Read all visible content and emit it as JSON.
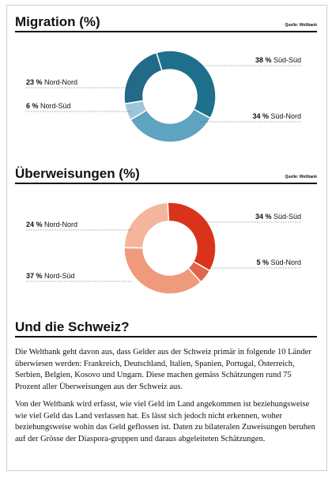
{
  "section1": {
    "title": "Migration (%)",
    "source": "Quelle: Weltbank"
  },
  "section2": {
    "title": "Überweisungen (%)",
    "source": "Quelle: Weltbank"
  },
  "section3": {
    "title": "Und die Schweiz?",
    "paragraphs": [
      "Die Weltbank geht davon aus, dass Gelder aus der Schweiz primär in folgende 10 Länder überwiesen werden: Frankreich, Deutschland, Italien, Spanien, Portugal, Österreich, Serbien, Belgien, Kosovo und Ungarn. Diese machen gemäss Schätzungen rund 75 Prozent aller Überweisungen aus der Schweiz aus.",
      "Von der Weltbank wird erfasst, wie viel Geld im Land angekommen ist beziehungsweise wie viel Geld das Land verlassen hat. Es lässt sich jedoch nicht erkennen, woher beziehungsweise wohin das Geld geflossen ist. Daten zu bilateralen Zuweisungen beruhen auf der Grösse der Diaspora-gruppen und daraus abgeleiteten Schätzungen."
    ]
  },
  "chart_data": [
    {
      "type": "pie",
      "title": "Migration (%)",
      "categories": [
        "Süd-Süd",
        "Süd-Nord",
        "Nord-Süd",
        "Nord-Nord"
      ],
      "values": [
        38,
        34,
        6,
        23
      ],
      "labels": [
        "38 %",
        "34 %",
        "6 %",
        "23 %"
      ],
      "colors": [
        "#1d6f8c",
        "#5ea3c0",
        "#9fc6d8",
        "#226a86"
      ]
    },
    {
      "type": "pie",
      "title": "Überweisungen (%)",
      "categories": [
        "Süd-Süd",
        "Süd-Nord",
        "Nord-Süd",
        "Nord-Nord"
      ],
      "values": [
        34,
        5,
        37,
        24
      ],
      "labels": [
        "34 %",
        "5 %",
        "37 %",
        "24 %"
      ],
      "colors": [
        "#d9341b",
        "#e2664c",
        "#ef9a7a",
        "#f3b69c"
      ]
    }
  ]
}
